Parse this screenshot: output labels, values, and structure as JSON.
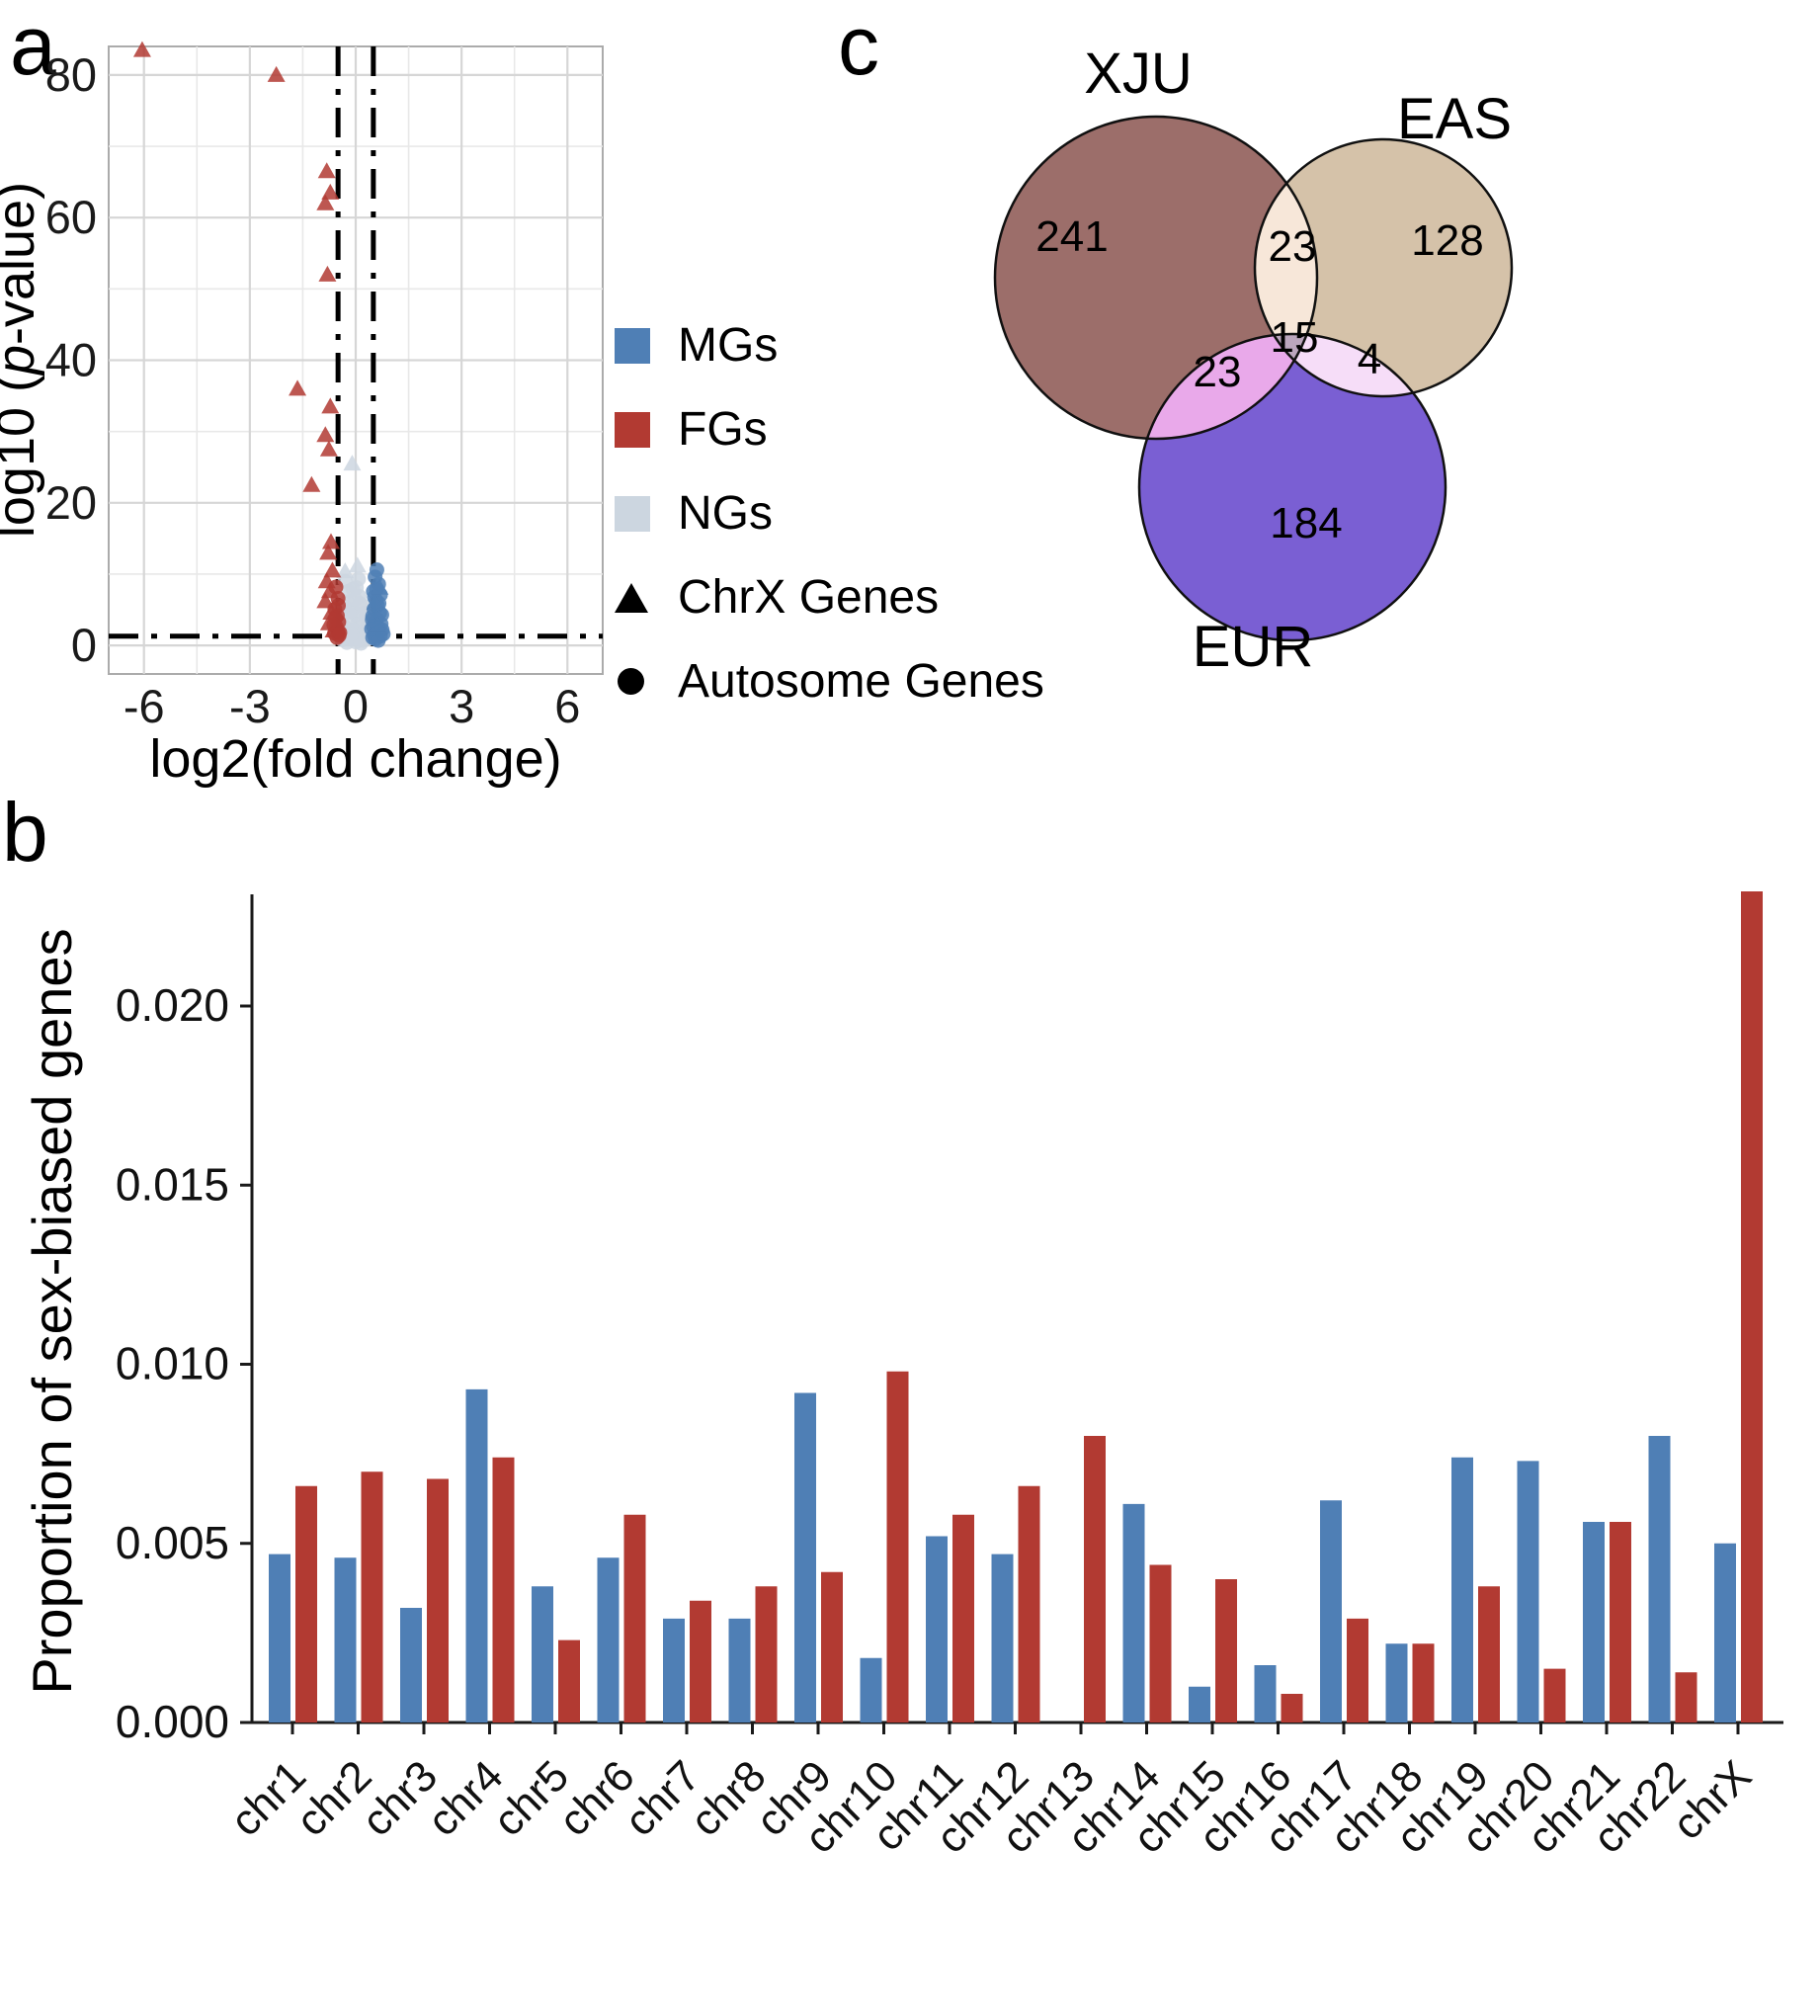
{
  "panels": {
    "a": "a",
    "b": "b",
    "c": "c"
  },
  "chart_data": [
    {
      "id": "volcano",
      "type": "scatter",
      "title": "",
      "xlabel": "log2(fold change)",
      "ylabel": "log10 (p-value)",
      "xlim": [
        -7,
        7
      ],
      "ylim": [
        -4,
        84
      ],
      "xticks": [
        -6,
        -3,
        0,
        3,
        6
      ],
      "yticks": [
        0,
        20,
        40,
        60,
        80
      ],
      "grid": "on",
      "threshold_lines": {
        "vertical_x": [
          -0.5,
          0.5
        ],
        "horizontal_y": 1.3
      },
      "legend": [
        {
          "label": "MGs",
          "marker": "square",
          "color": "#4f7fb5"
        },
        {
          "label": "FGs",
          "marker": "square",
          "color": "#b23a32"
        },
        {
          "label": "NGs",
          "marker": "square",
          "color": "#ccd6e0"
        },
        {
          "label": "ChrX Genes",
          "marker": "triangle",
          "color": "#000000"
        },
        {
          "label": "Autosome Genes",
          "marker": "circle",
          "color": "#000000"
        }
      ],
      "series": [
        {
          "name": "NGs",
          "color": "#ccd6e0",
          "points": [
            [
              -0.1,
              25.5,
              "t"
            ],
            [
              0.05,
              11.2,
              "t"
            ],
            [
              -0.3,
              10.4,
              "t"
            ],
            [
              -0.3,
              9.0,
              "c"
            ],
            [
              -0.2,
              7.6,
              "c"
            ],
            [
              -0.25,
              6.1,
              "c"
            ],
            [
              -0.1,
              5.0,
              "c"
            ],
            [
              0.0,
              4.3,
              "c"
            ],
            [
              0.1,
              6.9,
              "c"
            ],
            [
              0.2,
              5.6,
              "c"
            ],
            [
              0.3,
              4.1,
              "c"
            ],
            [
              -0.15,
              3.6,
              "c"
            ],
            [
              0.05,
              3.0,
              "c"
            ],
            [
              0.15,
              2.6,
              "c"
            ],
            [
              -0.05,
              2.2,
              "c"
            ],
            [
              0.25,
              2.0,
              "c"
            ],
            [
              -0.3,
              1.8,
              "c"
            ],
            [
              0.3,
              1.5,
              "c"
            ],
            [
              -0.2,
              1.3,
              "c"
            ],
            [
              0.1,
              1.1,
              "c"
            ],
            [
              -0.1,
              0.9,
              "c"
            ],
            [
              0.2,
              0.7,
              "c"
            ],
            [
              0.0,
              0.5,
              "c"
            ],
            [
              -0.25,
              0.4,
              "c"
            ],
            [
              0.15,
              0.3,
              "c"
            ],
            [
              -0.35,
              2.8,
              "c"
            ],
            [
              0.35,
              3.3,
              "c"
            ],
            [
              -0.08,
              7.9,
              "c"
            ],
            [
              0.08,
              9.3,
              "c"
            ],
            [
              0.02,
              8.1,
              "c"
            ],
            [
              -0.18,
              4.7,
              "c"
            ],
            [
              0.22,
              4.5,
              "c"
            ],
            [
              0.33,
              2.4,
              "c"
            ],
            [
              -0.33,
              5.5,
              "c"
            ],
            [
              0.12,
              5.9,
              "c"
            ],
            [
              -0.02,
              6.5,
              "c"
            ],
            [
              0.27,
              1.2,
              "c"
            ],
            [
              -0.12,
              1.6,
              "c"
            ],
            [
              0.38,
              1.0,
              "c"
            ],
            [
              -0.38,
              0.8,
              "c"
            ],
            [
              0.42,
              2.2,
              "c"
            ],
            [
              -0.42,
              1.2,
              "c"
            ]
          ]
        },
        {
          "name": "FGs",
          "color": "#b23a32",
          "points": [
            [
              -6.05,
              83.5,
              "t"
            ],
            [
              -2.25,
              80,
              "t"
            ],
            [
              -0.82,
              66.5,
              "t"
            ],
            [
              -0.72,
              63.5,
              "t"
            ],
            [
              -0.86,
              62,
              "t"
            ],
            [
              -0.8,
              52,
              "t"
            ],
            [
              -1.65,
              36,
              "t"
            ],
            [
              -0.72,
              33.5,
              "t"
            ],
            [
              -0.86,
              29.5,
              "t"
            ],
            [
              -0.76,
              27.5,
              "t"
            ],
            [
              -1.25,
              22.5,
              "t"
            ],
            [
              -0.7,
              14.5,
              "t"
            ],
            [
              -0.78,
              13,
              "t"
            ],
            [
              -0.66,
              10.5,
              "t"
            ],
            [
              -0.82,
              9,
              "t"
            ],
            [
              -0.73,
              7.6,
              "t"
            ],
            [
              -0.86,
              6.2,
              "t"
            ],
            [
              -0.69,
              4.6,
              "t"
            ],
            [
              -0.76,
              3.1,
              "t"
            ],
            [
              -0.63,
              2.1,
              "t"
            ],
            [
              -0.56,
              8.2,
              "c"
            ],
            [
              -0.5,
              6.6,
              "c"
            ],
            [
              -0.59,
              5.1,
              "c"
            ],
            [
              -0.52,
              4.2,
              "c"
            ],
            [
              -0.48,
              3.3,
              "c"
            ],
            [
              -0.55,
              2.6,
              "c"
            ],
            [
              -0.5,
              2.0,
              "c"
            ],
            [
              -0.6,
              1.7,
              "c"
            ],
            [
              -0.47,
              1.4,
              "c"
            ],
            [
              -0.53,
              1.1,
              "c"
            ],
            [
              -0.57,
              3.9,
              "c"
            ],
            [
              -0.49,
              5.6,
              "c"
            ],
            [
              -0.62,
              2.9,
              "c"
            ],
            [
              -0.45,
              1.8,
              "c"
            ]
          ]
        },
        {
          "name": "MGs",
          "color": "#4f7fb5",
          "points": [
            [
              0.6,
              10.6,
              "c"
            ],
            [
              0.55,
              9.6,
              "c"
            ],
            [
              0.65,
              8.6,
              "c"
            ],
            [
              0.5,
              7.6,
              "c"
            ],
            [
              0.7,
              7.1,
              "c"
            ],
            [
              0.58,
              6.3,
              "c"
            ],
            [
              0.62,
              5.6,
              "c"
            ],
            [
              0.52,
              5.1,
              "c"
            ],
            [
              0.68,
              4.6,
              "c"
            ],
            [
              0.48,
              4.1,
              "c"
            ],
            [
              0.6,
              3.7,
              "c"
            ],
            [
              0.55,
              3.3,
              "c"
            ],
            [
              0.72,
              3.0,
              "c"
            ],
            [
              0.5,
              2.7,
              "c"
            ],
            [
              0.65,
              2.4,
              "c"
            ],
            [
              0.58,
              2.1,
              "c"
            ],
            [
              0.62,
              1.8,
              "c"
            ],
            [
              0.52,
              1.5,
              "c"
            ],
            [
              0.7,
              1.3,
              "c"
            ],
            [
              0.48,
              1.1,
              "c"
            ],
            [
              0.56,
              0.9,
              "c"
            ],
            [
              0.64,
              0.7,
              "c"
            ],
            [
              0.75,
              2.2,
              "c"
            ],
            [
              0.78,
              1.6,
              "c"
            ],
            [
              0.45,
              2.3,
              "c"
            ],
            [
              0.47,
              3.6,
              "c"
            ],
            [
              0.74,
              4.3,
              "c"
            ],
            [
              0.66,
              5.9,
              "c"
            ],
            [
              0.53,
              6.8,
              "c"
            ],
            [
              0.59,
              7.9,
              "c"
            ],
            [
              0.55,
              6.0,
              "t"
            ],
            [
              0.62,
              2.9,
              "t"
            ],
            [
              0.68,
              8.1,
              "t"
            ]
          ]
        }
      ]
    },
    {
      "id": "venn",
      "type": "venn",
      "labels": [
        "XJU",
        "EAS",
        "EUR"
      ],
      "regions": [
        {
          "sets": [
            "XJU"
          ],
          "value": 241
        },
        {
          "sets": [
            "EAS"
          ],
          "value": 128
        },
        {
          "sets": [
            "EUR"
          ],
          "value": 184
        },
        {
          "sets": [
            "XJU",
            "EAS"
          ],
          "value": 23
        },
        {
          "sets": [
            "XJU",
            "EUR"
          ],
          "value": 23
        },
        {
          "sets": [
            "EAS",
            "EUR"
          ],
          "value": 4
        },
        {
          "sets": [
            "XJU",
            "EAS",
            "EUR"
          ],
          "value": 15
        }
      ],
      "colors": {
        "XJU": "#9c6e6a",
        "EAS": "#d5c2a9",
        "EUR": "#7a5fd3",
        "XJU_EAS": "#f7e7d9",
        "XJU_EUR": "#e9a9ea",
        "EAS_EUR": "#f6ddf8",
        "CENTER": "#bba6bd"
      }
    },
    {
      "id": "sex_biased_bars",
      "type": "bar",
      "title": "",
      "xlabel": "",
      "ylabel": "Proportion of sex-biased genes",
      "ylim": [
        0,
        0.024
      ],
      "yticks": [
        0.0,
        0.005,
        0.01,
        0.015,
        0.02
      ],
      "categories": [
        "chr1",
        "chr2",
        "chr3",
        "chr4",
        "chr5",
        "chr6",
        "chr7",
        "chr8",
        "chr9",
        "chr10",
        "chr11",
        "chr12",
        "chr13",
        "chr14",
        "chr15",
        "chr16",
        "chr17",
        "chr18",
        "chr19",
        "chr20",
        "chr21",
        "chr22",
        "chrX"
      ],
      "series": [
        {
          "name": "MGs",
          "color": "#4f7fb5",
          "values": [
            0.0047,
            0.0046,
            0.0032,
            0.0093,
            0.0038,
            0.0046,
            0.0029,
            0.0029,
            0.0092,
            0.0018,
            0.0052,
            0.0047,
            0,
            0.0061,
            0.001,
            0.0016,
            0.0062,
            0.0022,
            0.0074,
            0.0073,
            0.0056,
            0.008,
            0.005
          ]
        },
        {
          "name": "FGs",
          "color": "#b23a32",
          "values": [
            0.0066,
            0.007,
            0.0068,
            0.0074,
            0.0023,
            0.0058,
            0.0034,
            0.0038,
            0.0042,
            0.0098,
            0.0058,
            0.0066,
            0.008,
            0.0044,
            0.004,
            0.0008,
            0.0029,
            0.0022,
            0.0038,
            0.0015,
            0.0056,
            0.0014,
            0.0232
          ]
        }
      ]
    }
  ]
}
